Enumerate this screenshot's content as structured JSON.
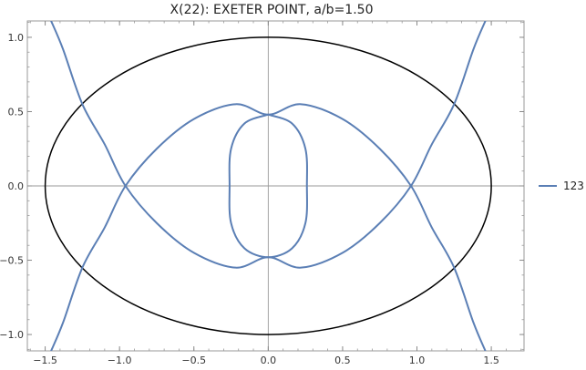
{
  "chart_data": {
    "type": "line",
    "title": "X(22): EXETER POINT, a/b=1.50",
    "xlabel": "",
    "ylabel": "",
    "xlim": [
      -1.62,
      1.72
    ],
    "ylim": [
      -1.11,
      1.11
    ],
    "grid": false,
    "legend_position": "right",
    "x_ticks": [
      -1.5,
      -1.0,
      -0.5,
      0.0,
      0.5,
      1.0,
      1.5
    ],
    "x_tick_labels": [
      "−1.5",
      "−1.0",
      "−0.5",
      "0.0",
      "0.5",
      "1.0",
      "1.5"
    ],
    "y_ticks": [
      -1.0,
      -0.5,
      0.0,
      0.5,
      1.0
    ],
    "y_tick_labels": [
      "−1.0",
      "−0.5",
      "0.0",
      "0.5",
      "1.0"
    ],
    "series": [
      {
        "kind": "ellipse",
        "color": "#000000",
        "a": 1.5,
        "b": 1.0
      },
      {
        "name": "123",
        "kind": "curve",
        "color": "#5b7fb5",
        "branches": [
          {
            "part": "outer-left-branch",
            "points": [
              [
                -1.46,
                1.11
              ],
              [
                -1.38,
                0.92
              ],
              [
                -1.25,
                0.55
              ],
              [
                -1.1,
                0.28
              ],
              [
                -0.96,
                0.0
              ],
              [
                -0.75,
                -0.25
              ],
              [
                -0.5,
                -0.45
              ],
              [
                -0.22,
                -0.55
              ],
              [
                0.0,
                -0.48
              ],
              [
                0.22,
                -0.55
              ],
              [
                0.5,
                -0.45
              ],
              [
                0.75,
                -0.25
              ],
              [
                0.96,
                0.0
              ],
              [
                1.1,
                0.28
              ],
              [
                1.25,
                0.55
              ],
              [
                1.38,
                0.92
              ],
              [
                1.46,
                1.11
              ]
            ]
          },
          {
            "part": "outer-right-branch",
            "points": [
              [
                -1.46,
                -1.11
              ],
              [
                -1.38,
                -0.92
              ],
              [
                -1.25,
                -0.55
              ],
              [
                -1.1,
                -0.28
              ],
              [
                -0.96,
                0.0
              ],
              [
                -0.75,
                0.25
              ],
              [
                -0.5,
                0.45
              ],
              [
                -0.22,
                0.55
              ],
              [
                0.0,
                0.48
              ],
              [
                0.22,
                0.55
              ],
              [
                0.5,
                0.45
              ],
              [
                0.75,
                0.25
              ],
              [
                0.96,
                0.0
              ],
              [
                1.1,
                -0.28
              ],
              [
                1.25,
                -0.55
              ],
              [
                1.38,
                -0.92
              ],
              [
                1.46,
                -1.11
              ]
            ]
          },
          {
            "part": "inner-loop",
            "points": [
              [
                0.0,
                0.48
              ],
              [
                0.16,
                0.42
              ],
              [
                0.25,
                0.25
              ],
              [
                0.26,
                0.0
              ],
              [
                0.25,
                -0.25
              ],
              [
                0.16,
                -0.42
              ],
              [
                0.0,
                -0.48
              ],
              [
                -0.16,
                -0.42
              ],
              [
                -0.25,
                -0.25
              ],
              [
                -0.26,
                0.0
              ],
              [
                -0.25,
                0.25
              ],
              [
                -0.16,
                0.42
              ],
              [
                0.0,
                0.48
              ]
            ]
          }
        ]
      }
    ]
  }
}
